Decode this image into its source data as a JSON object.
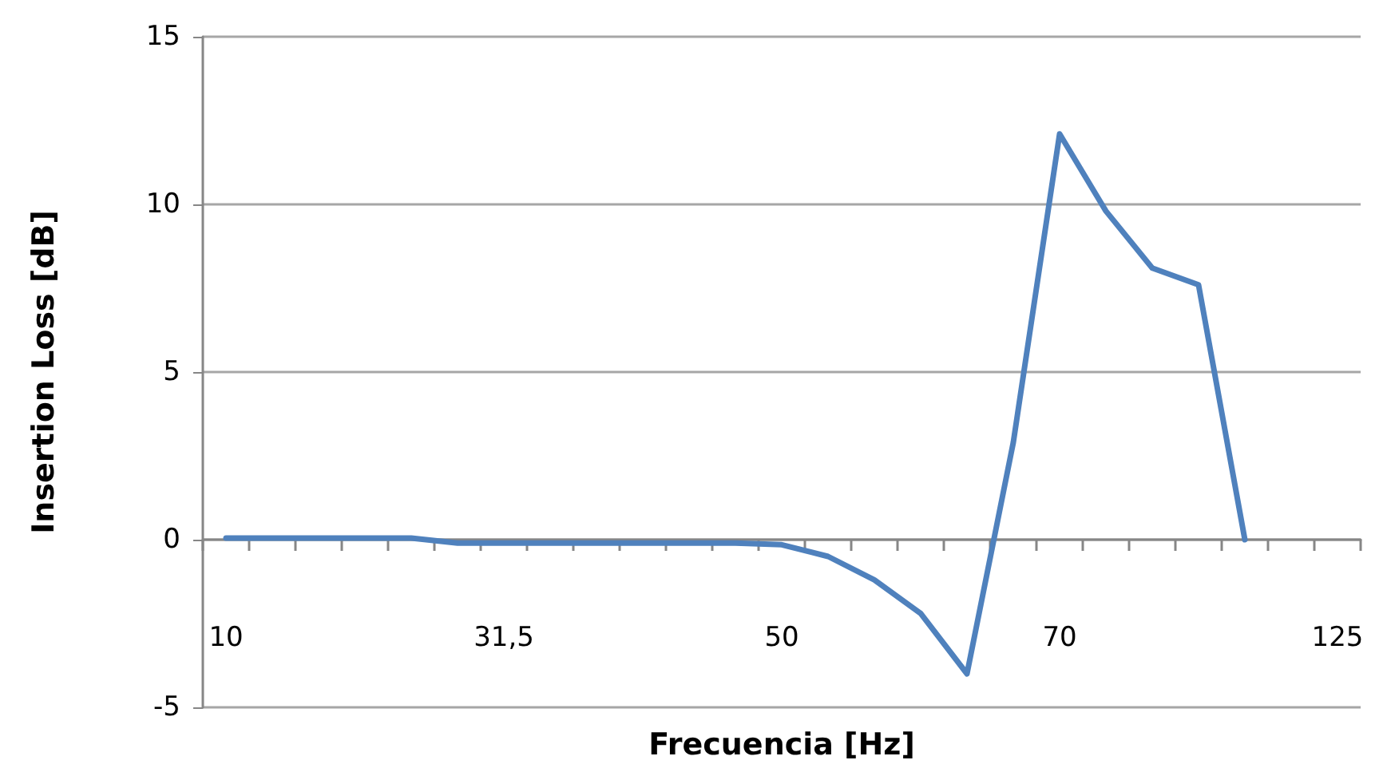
{
  "chart_data": {
    "type": "line",
    "xlabel": "Frecuencia [Hz]",
    "ylabel": "Insertion Loss [dB]",
    "categories": [
      "10",
      null,
      null,
      null,
      null,
      null,
      "31,5",
      null,
      null,
      null,
      null,
      null,
      "50",
      null,
      null,
      null,
      null,
      null,
      "70",
      null,
      null,
      null,
      null,
      null,
      "125"
    ],
    "series": [
      {
        "color": "#4f81bd",
        "values": [
          0.05,
          0.05,
          0.05,
          0.05,
          0.05,
          -0.1,
          -0.1,
          -0.1,
          -0.1,
          -0.1,
          -0.1,
          -0.1,
          -0.15,
          -0.5,
          -1.2,
          -2.2,
          -4.0,
          2.9,
          12.1,
          9.8,
          8.1,
          7.6,
          0,
          null,
          null
        ]
      }
    ],
    "ylim": [
      -5,
      15
    ],
    "yticks": [
      -5,
      0,
      5,
      10,
      15
    ],
    "grid": "y",
    "marker": "none",
    "line_style": "solid"
  }
}
